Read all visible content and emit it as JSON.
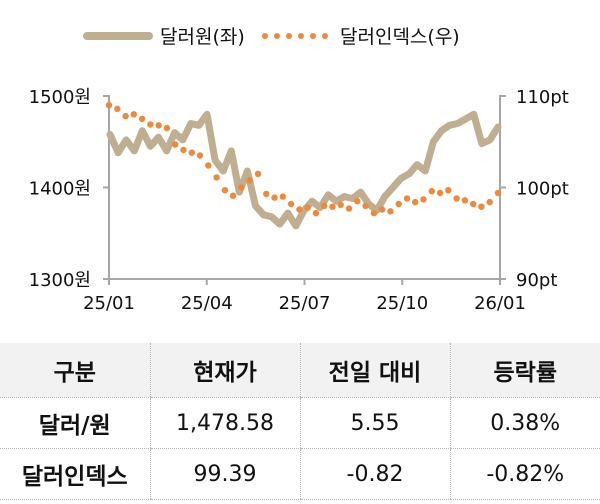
{
  "legend": {
    "series1_label": "달러원(좌)",
    "series2_label": "달러인덱스(우)"
  },
  "axes": {
    "left_ticks": [
      "1500원",
      "1400원",
      "1300원"
    ],
    "right_ticks": [
      "110pt",
      "100pt",
      "90pt"
    ],
    "x_ticks": [
      "25/01",
      "25/04",
      "25/07",
      "25/10",
      "26/01"
    ]
  },
  "colors": {
    "usdkrw": "#bfae90",
    "dxy": "#f0883a",
    "axis": "#a6a6a6",
    "header_bg": "#f2f2f2"
  },
  "chart_data": {
    "type": "line",
    "title": "",
    "xlabel": "",
    "ylabel": "",
    "x_ticks": [
      "25/01",
      "25/04",
      "25/07",
      "25/10",
      "26/01"
    ],
    "ylim_left": [
      1300,
      1500
    ],
    "ylim_right": [
      90,
      110
    ],
    "legend_position": "top",
    "grid": false,
    "series": [
      {
        "name": "달러원(좌)",
        "axis": "left",
        "style": "solid-thick",
        "x": [
          "25/01",
          "25/01",
          "25/01",
          "25/01",
          "25/02",
          "25/02",
          "25/02",
          "25/02",
          "25/03",
          "25/03",
          "25/03",
          "25/03",
          "25/04",
          "25/04",
          "25/04",
          "25/04",
          "25/05",
          "25/05",
          "25/05",
          "25/05",
          "25/06",
          "25/06",
          "25/06",
          "25/06",
          "25/07",
          "25/07",
          "25/07",
          "25/07",
          "25/08",
          "25/08",
          "25/08",
          "25/08",
          "25/09",
          "25/09",
          "25/09",
          "25/09",
          "25/10",
          "25/10",
          "25/10",
          "25/10",
          "25/11",
          "25/11",
          "25/11",
          "25/11",
          "25/12",
          "25/12",
          "25/12",
          "25/12",
          "26/01"
        ],
        "values": [
          1458,
          1438,
          1452,
          1440,
          1462,
          1445,
          1455,
          1440,
          1460,
          1452,
          1470,
          1468,
          1480,
          1430,
          1418,
          1440,
          1395,
          1418,
          1380,
          1370,
          1368,
          1360,
          1372,
          1358,
          1375,
          1385,
          1378,
          1392,
          1385,
          1390,
          1388,
          1395,
          1382,
          1375,
          1390,
          1400,
          1410,
          1415,
          1425,
          1418,
          1450,
          1462,
          1468,
          1470,
          1475,
          1480,
          1448,
          1452,
          1466
        ],
        "y_positions_note": "approximate daily trace sampled weekly"
      },
      {
        "name": "달러인덱스(우)",
        "axis": "right",
        "style": "dotted",
        "x": [
          "25/01",
          "25/01",
          "25/01",
          "25/02",
          "25/02",
          "25/02",
          "25/02",
          "25/03",
          "25/03",
          "25/03",
          "25/03",
          "25/04",
          "25/04",
          "25/04",
          "25/04",
          "25/05",
          "25/05",
          "25/05",
          "25/05",
          "25/06",
          "25/06",
          "25/06",
          "25/06",
          "25/07",
          "25/07",
          "25/07",
          "25/07",
          "25/08",
          "25/08",
          "25/08",
          "25/08",
          "25/09",
          "25/09",
          "25/09",
          "25/09",
          "25/10",
          "25/10",
          "25/10",
          "25/10",
          "25/11",
          "25/11",
          "25/11",
          "25/11",
          "25/12",
          "25/12",
          "25/12",
          "25/12",
          "26/01"
        ],
        "values": [
          109.0,
          108.6,
          107.8,
          108.0,
          107.5,
          106.9,
          106.8,
          106.5,
          104.7,
          104.1,
          103.8,
          103.5,
          102.4,
          101.1,
          99.7,
          99.1,
          100.0,
          100.8,
          101.5,
          99.3,
          98.9,
          99.0,
          98.2,
          97.6,
          97.8,
          97.2,
          98.0,
          97.9,
          98.1,
          97.7,
          98.5,
          98.0,
          97.2,
          97.6,
          97.4,
          98.2,
          98.8,
          98.4,
          98.7,
          99.6,
          99.4,
          99.7,
          98.8,
          98.6,
          98.2,
          97.9,
          98.4,
          99.4
        ]
      }
    ]
  },
  "table": {
    "headers": [
      "구분",
      "현재가",
      "전일 대비",
      "등락률"
    ],
    "rows": [
      [
        "달러/원",
        "1,478.58",
        "5.55",
        "0.38%"
      ],
      [
        "달러인덱스",
        "99.39",
        "-0.82",
        "-0.82%"
      ]
    ]
  }
}
